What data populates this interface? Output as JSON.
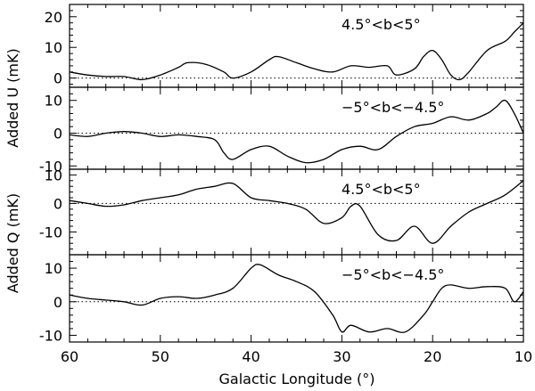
{
  "chart_data": {
    "type": "line",
    "xlabel": "Galactic Longitude (°)",
    "xlim": [
      60,
      10
    ],
    "x_ticks": [
      60,
      50,
      40,
      30,
      20,
      10
    ],
    "ylabel_top": "Added U (mK)",
    "ylabel_bottom": "Added Q (mK)",
    "reference_line": 0,
    "panels": [
      {
        "annotation": "4.5°<b<5°",
        "ylim": [
          -3,
          24
        ],
        "y_ticks": [
          0,
          10,
          20
        ],
        "x": [
          60,
          58,
          56,
          54,
          52,
          50,
          48,
          47,
          45,
          43,
          42,
          40,
          38,
          37,
          35,
          33,
          31,
          29,
          27,
          25,
          24,
          22,
          21,
          20,
          19,
          18,
          17,
          16,
          14,
          12,
          11,
          10
        ],
        "y": [
          2,
          1,
          0.5,
          0.5,
          -0.5,
          1,
          3.5,
          5,
          4.5,
          2,
          0,
          2,
          6,
          7,
          5,
          3,
          2,
          4,
          3.5,
          4,
          1,
          3,
          7,
          9,
          6,
          1,
          -0.5,
          2,
          9,
          12,
          15,
          18
        ]
      },
      {
        "annotation": "−5°<b<−4.5°",
        "ylim": [
          -11,
          14
        ],
        "y_ticks": [
          -10,
          0,
          10
        ],
        "x": [
          60,
          58,
          56,
          54,
          52,
          50,
          48,
          46,
          44,
          43,
          42,
          40,
          38,
          36,
          34,
          32,
          30,
          28,
          26,
          24,
          22,
          20,
          18,
          16,
          14,
          13,
          12,
          11,
          10
        ],
        "y": [
          -0.5,
          -1,
          0,
          0.5,
          0,
          -1,
          -0.5,
          -1,
          -2,
          -6,
          -8,
          -5,
          -4,
          -7,
          -9,
          -8,
          -5,
          -4,
          -5,
          -1,
          2,
          3,
          5,
          4,
          6,
          8,
          10,
          6,
          0
        ]
      },
      {
        "annotation": "4.5°<b<5°",
        "ylim": [
          -18,
          12
        ],
        "y_ticks": [
          -10,
          0,
          10
        ],
        "x": [
          60,
          58,
          56,
          54,
          52,
          50,
          48,
          46,
          44,
          42,
          40,
          38,
          36,
          34,
          32,
          30,
          29,
          28,
          26,
          24,
          22,
          20,
          18,
          16,
          14,
          12,
          10
        ],
        "y": [
          1,
          0,
          -1,
          -0.5,
          1,
          2,
          3,
          5,
          6,
          7,
          2,
          1,
          0,
          -2,
          -7,
          -5,
          -1,
          -1,
          -11,
          -13,
          -8,
          -14,
          -8,
          -3,
          0,
          3,
          8
        ]
      },
      {
        "annotation": "−5°<b<−4.5°",
        "ylim": [
          -12,
          14
        ],
        "y_ticks": [
          -10,
          0,
          10
        ],
        "x": [
          60,
          58,
          56,
          54,
          52,
          50,
          48,
          46,
          44,
          42,
          40,
          39,
          37,
          35,
          33,
          31,
          30,
          29,
          27,
          25,
          23,
          21,
          20,
          19,
          18,
          16,
          14,
          12,
          11,
          10
        ],
        "y": [
          2,
          1,
          0.5,
          0,
          -1,
          1,
          1.5,
          1,
          2,
          4,
          10,
          11,
          8,
          6,
          3,
          -4,
          -9,
          -7,
          -9,
          -8,
          -9,
          -4,
          0,
          4,
          5,
          4,
          4.5,
          4,
          0,
          3
        ]
      }
    ]
  }
}
